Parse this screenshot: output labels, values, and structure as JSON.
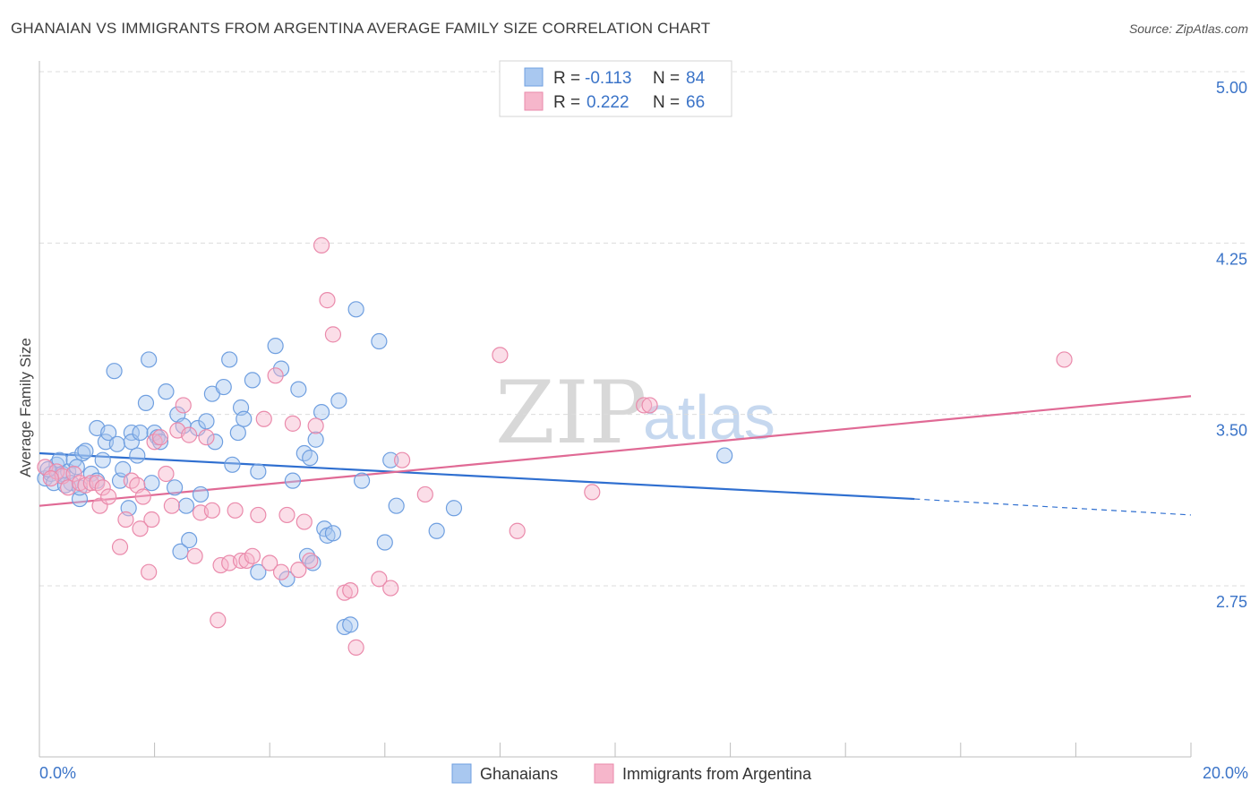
{
  "header": {
    "title": "GHANAIAN VS IMMIGRANTS FROM ARGENTINA AVERAGE FAMILY SIZE CORRELATION CHART",
    "source": "Source: ZipAtlas.com"
  },
  "watermark": {
    "zip": "ZIP",
    "atlas": "atlas"
  },
  "legend": {
    "rows": [
      {
        "r_label": "R =",
        "r_value": "-0.113",
        "n_label": "N =",
        "n_value": "84",
        "color": "#a9c8f0"
      },
      {
        "r_label": "R =",
        "r_value": "0.222",
        "n_label": "N =",
        "n_value": "66",
        "color": "#f6b6cb"
      }
    ]
  },
  "bottom_legend": [
    "Ghanaians",
    "Immigrants from Argentina"
  ],
  "chart_data": {
    "type": "scatter",
    "title": "GHANAIAN VS IMMIGRANTS FROM ARGENTINA AVERAGE FAMILY SIZE CORRELATION CHART",
    "xlabel": "",
    "ylabel": "Average Family Size",
    "xlim": [
      0,
      20
    ],
    "ylim": [
      2.0,
      5.1
    ],
    "x_tick_labels": [
      "0.0%",
      "20.0%"
    ],
    "y_ticks": [
      2.75,
      3.5,
      4.25,
      5.0
    ],
    "y_tick_labels": [
      "2.75",
      "3.50",
      "4.25",
      "5.00"
    ],
    "grid": "horizontal dashed",
    "legend_position": "top-center",
    "series": [
      {
        "name": "Ghanaians",
        "color": "#6f9fe0",
        "fill": "#a9c8f0",
        "trend": {
          "x0": 0,
          "y0": 3.33,
          "x1": 15.2,
          "y1": 3.13,
          "dash_to_x": 20,
          "dash_to_y": 3.06,
          "color": "#2f6fd0"
        },
        "points": [
          [
            0.1,
            3.22
          ],
          [
            0.2,
            3.24
          ],
          [
            0.25,
            3.2
          ],
          [
            0.3,
            3.28
          ],
          [
            0.35,
            3.3
          ],
          [
            0.4,
            3.24
          ],
          [
            0.5,
            3.25
          ],
          [
            0.55,
            3.2
          ],
          [
            0.6,
            3.3
          ],
          [
            0.7,
            3.13
          ],
          [
            0.7,
            3.18
          ],
          [
            0.75,
            3.33
          ],
          [
            0.8,
            3.34
          ],
          [
            0.9,
            3.24
          ],
          [
            1.0,
            3.21
          ],
          [
            1.0,
            3.44
          ],
          [
            1.1,
            3.3
          ],
          [
            1.15,
            3.38
          ],
          [
            1.2,
            3.42
          ],
          [
            1.3,
            3.69
          ],
          [
            1.35,
            3.37
          ],
          [
            1.4,
            3.21
          ],
          [
            1.45,
            3.26
          ],
          [
            1.55,
            3.09
          ],
          [
            1.6,
            3.42
          ],
          [
            1.6,
            3.38
          ],
          [
            1.7,
            3.32
          ],
          [
            1.75,
            3.42
          ],
          [
            1.85,
            3.55
          ],
          [
            1.9,
            3.74
          ],
          [
            1.95,
            3.2
          ],
          [
            2.0,
            3.42
          ],
          [
            2.05,
            3.4
          ],
          [
            2.1,
            3.38
          ],
          [
            2.2,
            3.6
          ],
          [
            2.35,
            3.18
          ],
          [
            2.4,
            3.5
          ],
          [
            2.45,
            2.9
          ],
          [
            2.5,
            3.45
          ],
          [
            2.55,
            3.1
          ],
          [
            2.6,
            2.95
          ],
          [
            2.75,
            3.44
          ],
          [
            2.8,
            3.15
          ],
          [
            2.9,
            3.47
          ],
          [
            3.0,
            3.59
          ],
          [
            3.05,
            3.38
          ],
          [
            3.2,
            3.62
          ],
          [
            3.3,
            3.74
          ],
          [
            3.35,
            3.28
          ],
          [
            3.45,
            3.42
          ],
          [
            3.5,
            3.53
          ],
          [
            3.55,
            3.48
          ],
          [
            3.7,
            3.65
          ],
          [
            3.8,
            2.81
          ],
          [
            3.8,
            3.25
          ],
          [
            4.1,
            3.8
          ],
          [
            4.2,
            3.7
          ],
          [
            4.3,
            2.78
          ],
          [
            4.4,
            3.21
          ],
          [
            4.5,
            3.61
          ],
          [
            4.6,
            3.33
          ],
          [
            4.65,
            2.88
          ],
          [
            4.7,
            3.31
          ],
          [
            4.75,
            2.85
          ],
          [
            4.8,
            3.39
          ],
          [
            4.9,
            3.51
          ],
          [
            4.95,
            3.0
          ],
          [
            5.0,
            2.97
          ],
          [
            5.1,
            2.98
          ],
          [
            5.2,
            3.56
          ],
          [
            5.3,
            2.57
          ],
          [
            5.4,
            2.58
          ],
          [
            5.5,
            3.96
          ],
          [
            5.6,
            3.21
          ],
          [
            5.9,
            3.82
          ],
          [
            6.0,
            2.94
          ],
          [
            6.1,
            3.3
          ],
          [
            6.2,
            3.1
          ],
          [
            6.9,
            2.99
          ],
          [
            7.2,
            3.09
          ],
          [
            11.9,
            3.32
          ],
          [
            0.15,
            3.26
          ],
          [
            0.45,
            3.19
          ],
          [
            0.65,
            3.27
          ]
        ]
      },
      {
        "name": "Immigrants from Argentina",
        "color": "#ea8aab",
        "fill": "#f6b6cb",
        "trend": {
          "x0": 0,
          "y0": 3.1,
          "x1": 20,
          "y1": 3.58,
          "color": "#e06a95"
        },
        "points": [
          [
            0.1,
            3.27
          ],
          [
            0.3,
            3.25
          ],
          [
            0.4,
            3.23
          ],
          [
            0.5,
            3.18
          ],
          [
            0.6,
            3.24
          ],
          [
            0.7,
            3.2
          ],
          [
            0.8,
            3.19
          ],
          [
            0.9,
            3.2
          ],
          [
            1.0,
            3.2
          ],
          [
            1.05,
            3.1
          ],
          [
            1.1,
            3.18
          ],
          [
            1.2,
            3.14
          ],
          [
            1.4,
            2.92
          ],
          [
            1.5,
            3.04
          ],
          [
            1.6,
            3.21
          ],
          [
            1.7,
            3.19
          ],
          [
            1.75,
            3.0
          ],
          [
            1.8,
            3.14
          ],
          [
            1.9,
            2.81
          ],
          [
            1.95,
            3.04
          ],
          [
            2.0,
            3.38
          ],
          [
            2.1,
            3.4
          ],
          [
            2.2,
            3.24
          ],
          [
            2.3,
            3.1
          ],
          [
            2.4,
            3.43
          ],
          [
            2.5,
            3.54
          ],
          [
            2.6,
            3.41
          ],
          [
            2.7,
            2.88
          ],
          [
            2.8,
            3.07
          ],
          [
            2.9,
            3.4
          ],
          [
            3.0,
            3.08
          ],
          [
            3.1,
            2.6
          ],
          [
            3.15,
            2.84
          ],
          [
            3.3,
            2.85
          ],
          [
            3.4,
            3.08
          ],
          [
            3.5,
            2.86
          ],
          [
            3.6,
            2.86
          ],
          [
            3.7,
            2.88
          ],
          [
            3.8,
            3.06
          ],
          [
            3.9,
            3.48
          ],
          [
            4.0,
            2.85
          ],
          [
            4.1,
            3.67
          ],
          [
            4.2,
            2.81
          ],
          [
            4.3,
            3.06
          ],
          [
            4.4,
            3.46
          ],
          [
            4.5,
            2.82
          ],
          [
            4.6,
            3.03
          ],
          [
            4.7,
            2.86
          ],
          [
            4.8,
            3.45
          ],
          [
            4.9,
            4.24
          ],
          [
            5.0,
            4.0
          ],
          [
            5.1,
            3.85
          ],
          [
            5.3,
            2.72
          ],
          [
            5.4,
            2.73
          ],
          [
            5.5,
            2.48
          ],
          [
            5.9,
            2.78
          ],
          [
            6.1,
            2.74
          ],
          [
            6.3,
            3.3
          ],
          [
            6.7,
            3.15
          ],
          [
            8.0,
            3.76
          ],
          [
            8.3,
            2.99
          ],
          [
            9.6,
            3.16
          ],
          [
            10.5,
            3.54
          ],
          [
            10.6,
            3.54
          ],
          [
            17.8,
            3.74
          ],
          [
            0.2,
            3.22
          ]
        ]
      }
    ]
  }
}
